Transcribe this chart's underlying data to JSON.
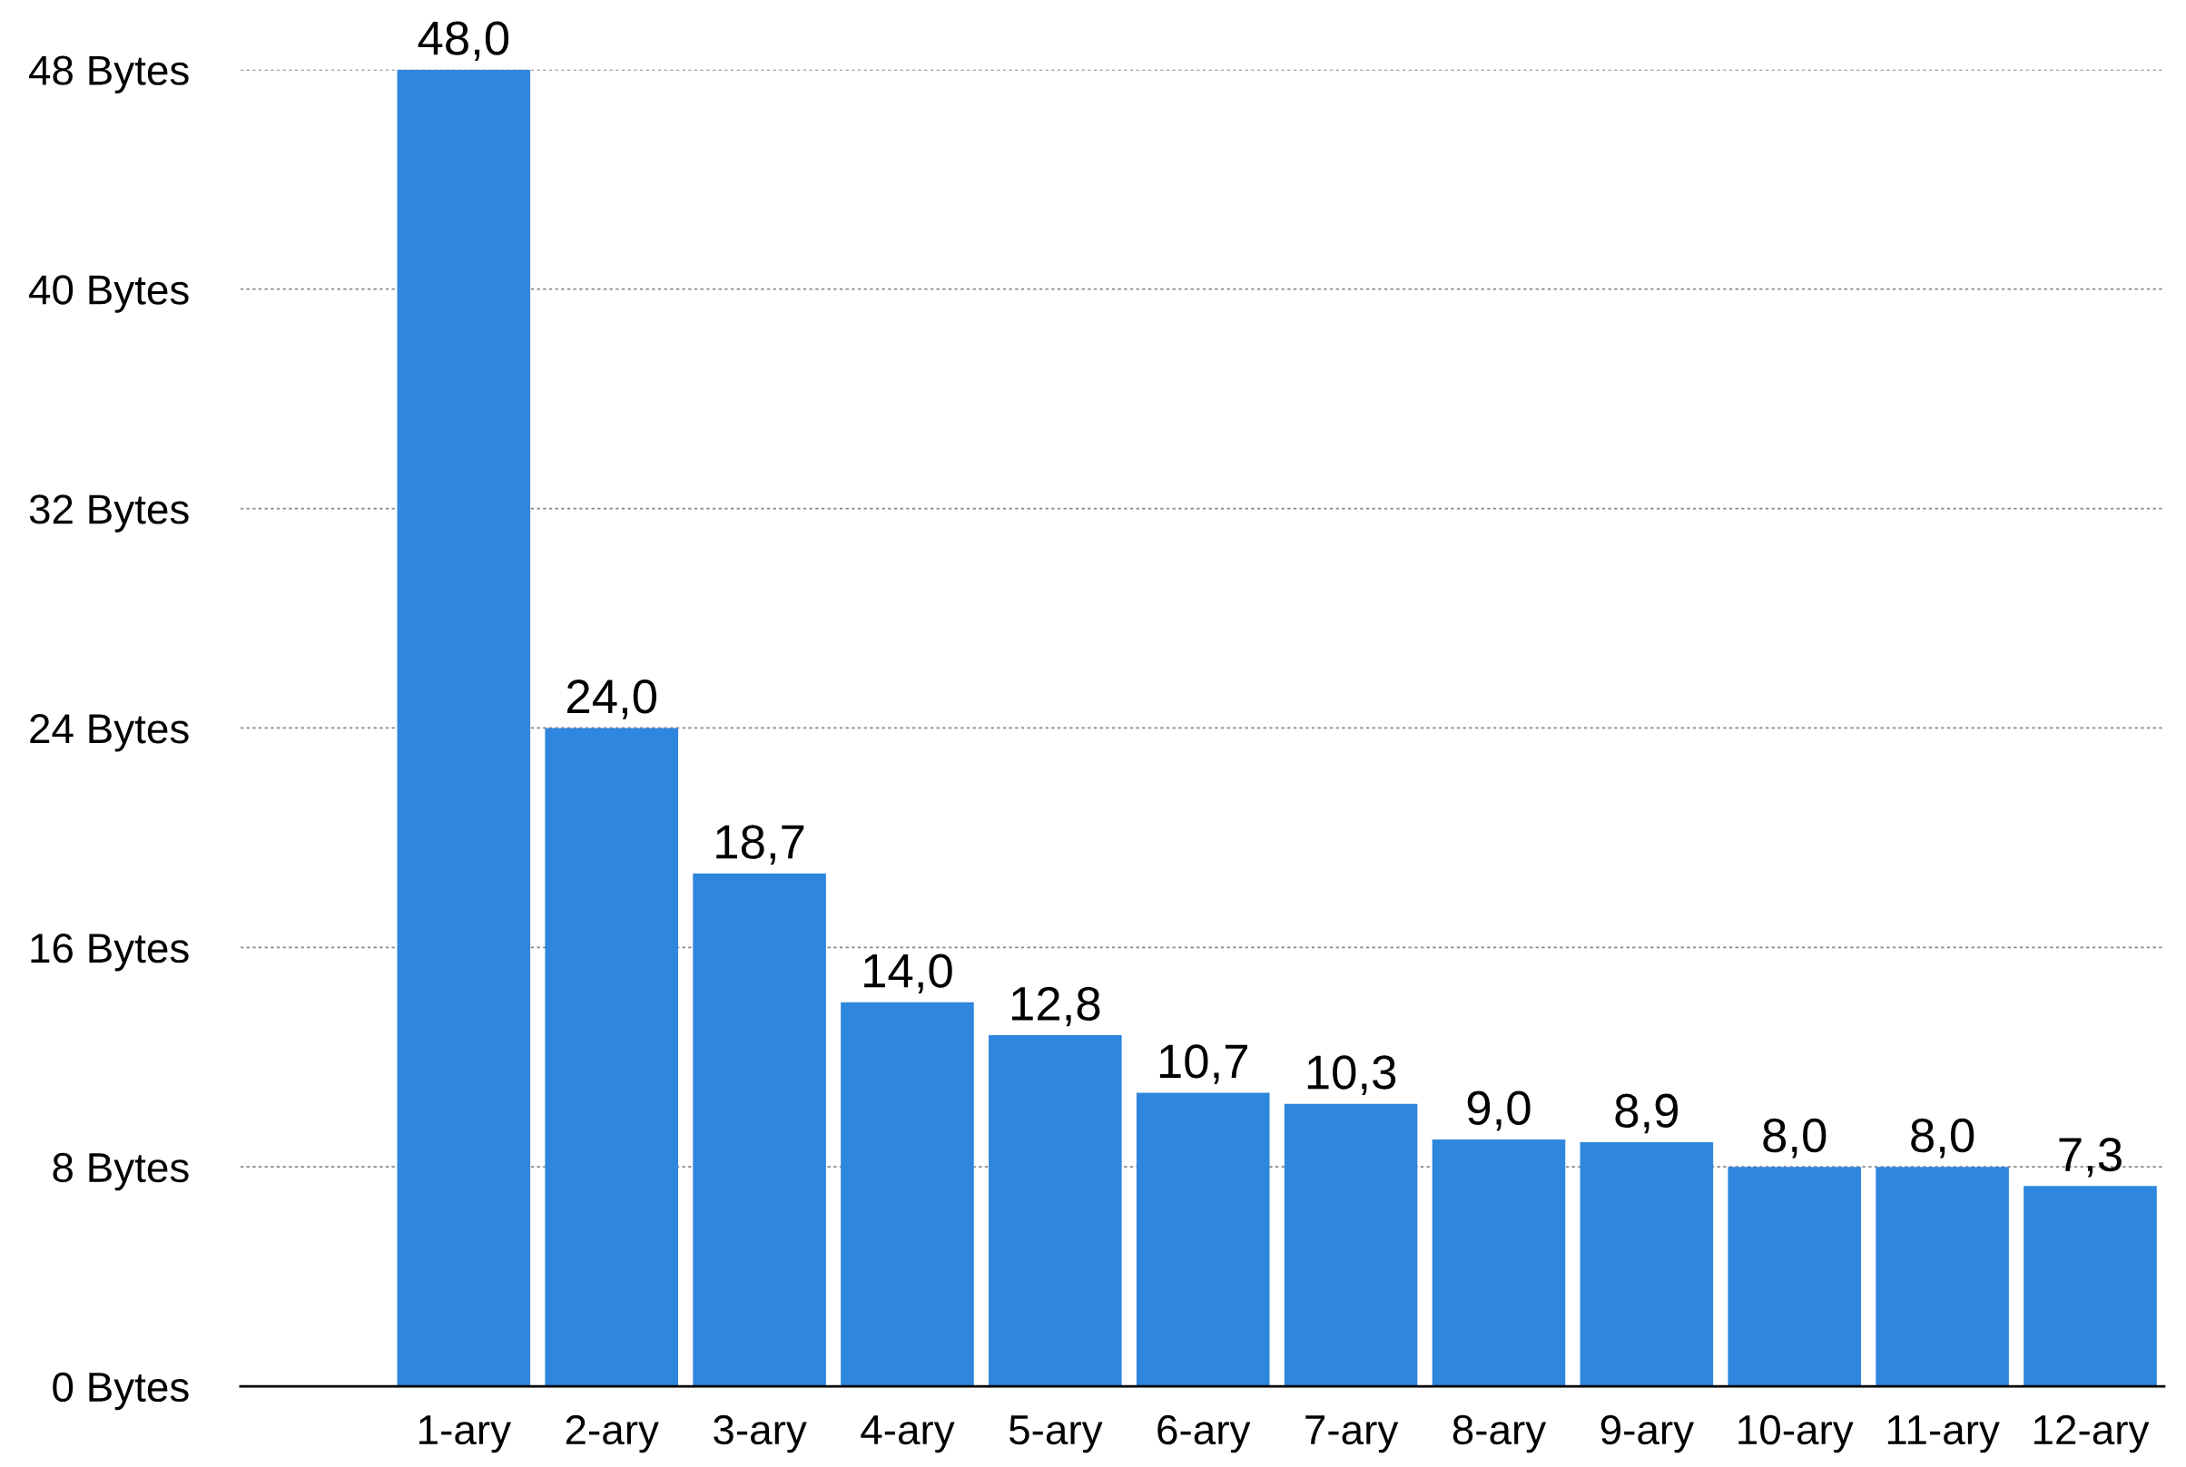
{
  "chart_data": {
    "type": "bar",
    "categories": [
      "1-ary",
      "2-ary",
      "3-ary",
      "4-ary",
      "5-ary",
      "6-ary",
      "7-ary",
      "8-ary",
      "9-ary",
      "10-ary",
      "11-ary",
      "12-ary"
    ],
    "values": [
      48.0,
      24.0,
      18.7,
      14.0,
      12.8,
      10.7,
      10.3,
      9.0,
      8.9,
      8.0,
      8.0,
      7.3
    ],
    "value_labels": [
      "48,0",
      "24,0",
      "18,7",
      "14,0",
      "12,8",
      "10,7",
      "10,3",
      "9,0",
      "8,9",
      "8,0",
      "8,0",
      "7,3"
    ],
    "color": "#2f86dd",
    "ylim": [
      0,
      48
    ],
    "yticks": [
      {
        "value": 0,
        "label": "0 Bytes"
      },
      {
        "value": 8,
        "label": "8 Bytes"
      },
      {
        "value": 16,
        "label": "16 Bytes"
      },
      {
        "value": 24,
        "label": "24 Bytes"
      },
      {
        "value": 32,
        "label": "32 Bytes"
      },
      {
        "value": 40,
        "label": "40 Bytes"
      },
      {
        "value": 48,
        "label": "48 Bytes"
      }
    ],
    "grid": "y"
  }
}
